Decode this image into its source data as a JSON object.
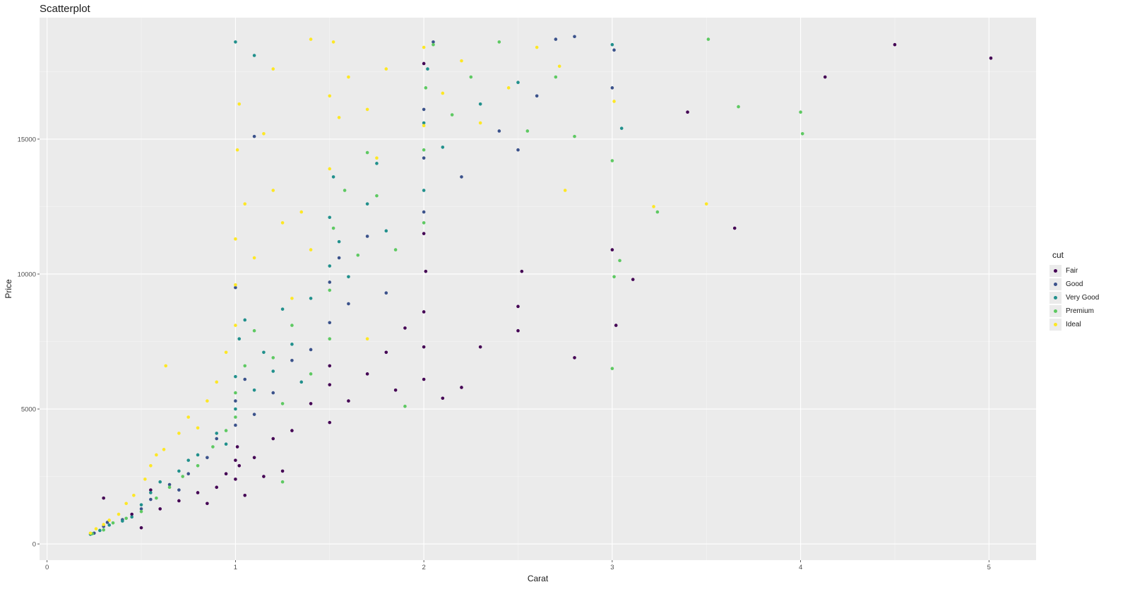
{
  "chart_data": {
    "type": "scatter",
    "title": "Scatterplot",
    "xlabel": "Carat",
    "ylabel": "Price",
    "xlim": [
      -0.04,
      5.25
    ],
    "ylim": [
      -600,
      19500
    ],
    "x_ticks": [
      0,
      1,
      2,
      3,
      4,
      5
    ],
    "x_tick_labels": [
      "0",
      "1",
      "2",
      "3",
      "4",
      "5"
    ],
    "y_ticks": [
      0,
      5000,
      10000,
      15000
    ],
    "y_tick_labels": [
      "0",
      "5000",
      "10000",
      "15000"
    ],
    "grid": true,
    "legend": {
      "title": "cut",
      "placement": "right"
    },
    "series": [
      {
        "name": "Fair",
        "color": "#440154",
        "points": [
          [
            0.3,
            1700
          ],
          [
            0.45,
            1100
          ],
          [
            0.5,
            600
          ],
          [
            0.55,
            2000
          ],
          [
            0.6,
            1300
          ],
          [
            0.7,
            1600
          ],
          [
            0.8,
            1900
          ],
          [
            0.9,
            2100
          ],
          [
            0.95,
            2600
          ],
          [
            1.0,
            2400
          ],
          [
            1.0,
            3100
          ],
          [
            1.01,
            3600
          ],
          [
            1.02,
            2900
          ],
          [
            1.1,
            3200
          ],
          [
            1.15,
            2500
          ],
          [
            1.2,
            3900
          ],
          [
            1.3,
            4200
          ],
          [
            1.4,
            5200
          ],
          [
            1.5,
            4500
          ],
          [
            1.5,
            5900
          ],
          [
            1.5,
            6600
          ],
          [
            1.6,
            5300
          ],
          [
            1.7,
            6300
          ],
          [
            1.8,
            7100
          ],
          [
            1.85,
            5700
          ],
          [
            1.9,
            8000
          ],
          [
            2.0,
            6100
          ],
          [
            2.0,
            7300
          ],
          [
            2.0,
            8600
          ],
          [
            2.0,
            11500
          ],
          [
            2.0,
            17800
          ],
          [
            2.01,
            10100
          ],
          [
            2.1,
            5400
          ],
          [
            2.2,
            5800
          ],
          [
            2.3,
            7300
          ],
          [
            2.5,
            7900
          ],
          [
            2.5,
            8800
          ],
          [
            2.52,
            10100
          ],
          [
            2.8,
            6900
          ],
          [
            3.0,
            10900
          ],
          [
            3.02,
            8100
          ],
          [
            3.11,
            9800
          ],
          [
            3.4,
            16000
          ],
          [
            3.65,
            11700
          ],
          [
            4.13,
            17300
          ],
          [
            4.5,
            18500
          ],
          [
            5.01,
            18000
          ],
          [
            1.25,
            2700
          ],
          [
            0.85,
            1500
          ],
          [
            1.05,
            1800
          ]
        ]
      },
      {
        "name": "Good",
        "color": "#3b528b",
        "points": [
          [
            0.25,
            400
          ],
          [
            0.3,
            650
          ],
          [
            0.32,
            800
          ],
          [
            0.4,
            900
          ],
          [
            0.5,
            1300
          ],
          [
            0.55,
            1650
          ],
          [
            0.65,
            2200
          ],
          [
            0.75,
            2600
          ],
          [
            0.85,
            3200
          ],
          [
            0.9,
            3900
          ],
          [
            1.0,
            4400
          ],
          [
            1.0,
            5300
          ],
          [
            1.05,
            6100
          ],
          [
            1.1,
            4800
          ],
          [
            1.2,
            5600
          ],
          [
            1.3,
            6800
          ],
          [
            1.4,
            7200
          ],
          [
            1.5,
            8200
          ],
          [
            1.5,
            9700
          ],
          [
            1.55,
            10600
          ],
          [
            1.6,
            8900
          ],
          [
            1.7,
            11400
          ],
          [
            1.8,
            9300
          ],
          [
            2.0,
            12300
          ],
          [
            2.0,
            14300
          ],
          [
            2.0,
            16100
          ],
          [
            2.05,
            18600
          ],
          [
            2.2,
            13600
          ],
          [
            2.4,
            15300
          ],
          [
            2.5,
            14600
          ],
          [
            2.6,
            16600
          ],
          [
            2.7,
            18700
          ],
          [
            2.8,
            18800
          ],
          [
            3.0,
            16900
          ],
          [
            3.01,
            18300
          ],
          [
            1.1,
            15100
          ],
          [
            1.0,
            9500
          ],
          [
            0.7,
            2000
          ]
        ]
      },
      {
        "name": "Very Good",
        "color": "#21908c",
        "points": [
          [
            0.23,
            360
          ],
          [
            0.28,
            500
          ],
          [
            0.33,
            700
          ],
          [
            0.4,
            850
          ],
          [
            0.45,
            1000
          ],
          [
            0.5,
            1450
          ],
          [
            0.55,
            1900
          ],
          [
            0.6,
            2300
          ],
          [
            0.7,
            2700
          ],
          [
            0.75,
            3100
          ],
          [
            0.8,
            3300
          ],
          [
            0.9,
            4100
          ],
          [
            1.0,
            5000
          ],
          [
            1.0,
            6200
          ],
          [
            1.02,
            7600
          ],
          [
            1.05,
            8300
          ],
          [
            1.1,
            5700
          ],
          [
            1.15,
            7100
          ],
          [
            1.2,
            6400
          ],
          [
            1.25,
            8700
          ],
          [
            1.3,
            7400
          ],
          [
            1.4,
            9100
          ],
          [
            1.5,
            10300
          ],
          [
            1.5,
            12100
          ],
          [
            1.52,
            13600
          ],
          [
            1.55,
            11200
          ],
          [
            1.6,
            9900
          ],
          [
            1.7,
            12600
          ],
          [
            1.75,
            14100
          ],
          [
            1.8,
            11600
          ],
          [
            2.0,
            13100
          ],
          [
            2.0,
            15600
          ],
          [
            2.02,
            17600
          ],
          [
            2.1,
            14700
          ],
          [
            2.3,
            16300
          ],
          [
            1.0,
            18600
          ],
          [
            1.1,
            18100
          ],
          [
            2.5,
            17100
          ],
          [
            3.0,
            18500
          ],
          [
            3.05,
            15400
          ],
          [
            0.95,
            3700
          ],
          [
            1.35,
            6000
          ]
        ]
      },
      {
        "name": "Premium",
        "color": "#5ec962",
        "points": [
          [
            0.24,
            380
          ],
          [
            0.3,
            520
          ],
          [
            0.35,
            780
          ],
          [
            0.42,
            950
          ],
          [
            0.5,
            1200
          ],
          [
            0.58,
            1700
          ],
          [
            0.65,
            2100
          ],
          [
            0.72,
            2500
          ],
          [
            0.8,
            2900
          ],
          [
            0.88,
            3600
          ],
          [
            0.95,
            4200
          ],
          [
            1.0,
            4700
          ],
          [
            1.0,
            5600
          ],
          [
            1.05,
            6600
          ],
          [
            1.1,
            7900
          ],
          [
            1.2,
            6900
          ],
          [
            1.25,
            5200
          ],
          [
            1.3,
            8100
          ],
          [
            1.4,
            6300
          ],
          [
            1.5,
            7600
          ],
          [
            1.5,
            9400
          ],
          [
            1.52,
            11700
          ],
          [
            1.58,
            13100
          ],
          [
            1.65,
            10700
          ],
          [
            1.7,
            14500
          ],
          [
            1.75,
            12900
          ],
          [
            1.85,
            10900
          ],
          [
            1.9,
            5100
          ],
          [
            2.0,
            11900
          ],
          [
            2.0,
            14600
          ],
          [
            2.01,
            16900
          ],
          [
            2.05,
            18500
          ],
          [
            2.15,
            15900
          ],
          [
            2.25,
            17300
          ],
          [
            2.4,
            18600
          ],
          [
            2.55,
            15300
          ],
          [
            2.7,
            17300
          ],
          [
            2.8,
            15100
          ],
          [
            3.0,
            14200
          ],
          [
            3.0,
            6500
          ],
          [
            3.01,
            9900
          ],
          [
            3.04,
            10500
          ],
          [
            3.24,
            12300
          ],
          [
            3.51,
            18700
          ],
          [
            3.67,
            16200
          ],
          [
            4.01,
            15200
          ],
          [
            4.0,
            16000
          ],
          [
            1.25,
            2300
          ]
        ]
      },
      {
        "name": "Ideal",
        "color": "#fde725",
        "points": [
          [
            0.23,
            400
          ],
          [
            0.26,
            560
          ],
          [
            0.3,
            720
          ],
          [
            0.33,
            880
          ],
          [
            0.38,
            1100
          ],
          [
            0.42,
            1500
          ],
          [
            0.46,
            1800
          ],
          [
            0.52,
            2400
          ],
          [
            0.55,
            2900
          ],
          [
            0.58,
            3300
          ],
          [
            0.62,
            3500
          ],
          [
            0.63,
            6600
          ],
          [
            0.7,
            4100
          ],
          [
            0.75,
            4700
          ],
          [
            0.8,
            4300
          ],
          [
            0.85,
            5300
          ],
          [
            0.9,
            6000
          ],
          [
            0.95,
            7100
          ],
          [
            1.0,
            8100
          ],
          [
            1.0,
            9600
          ],
          [
            1.0,
            11300
          ],
          [
            1.01,
            14600
          ],
          [
            1.02,
            16300
          ],
          [
            1.05,
            12600
          ],
          [
            1.1,
            10600
          ],
          [
            1.15,
            15200
          ],
          [
            1.2,
            13100
          ],
          [
            1.25,
            11900
          ],
          [
            1.3,
            9100
          ],
          [
            1.35,
            12300
          ],
          [
            1.4,
            10900
          ],
          [
            1.5,
            13900
          ],
          [
            1.5,
            16600
          ],
          [
            1.52,
            18600
          ],
          [
            1.55,
            15800
          ],
          [
            1.6,
            17300
          ],
          [
            1.7,
            16100
          ],
          [
            1.75,
            14300
          ],
          [
            1.8,
            17600
          ],
          [
            2.0,
            15500
          ],
          [
            2.0,
            18400
          ],
          [
            2.1,
            16700
          ],
          [
            2.2,
            17900
          ],
          [
            2.3,
            15600
          ],
          [
            2.45,
            16900
          ],
          [
            2.6,
            18400
          ],
          [
            2.72,
            17700
          ],
          [
            2.75,
            13100
          ],
          [
            3.01,
            16400
          ],
          [
            3.22,
            12500
          ],
          [
            3.5,
            12600
          ],
          [
            1.4,
            18700
          ],
          [
            1.2,
            17600
          ],
          [
            1.7,
            7600
          ]
        ]
      }
    ]
  }
}
